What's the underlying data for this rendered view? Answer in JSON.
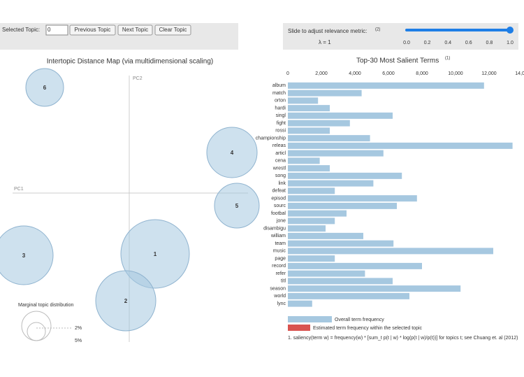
{
  "toolbar": {
    "label": "Selected Topic:",
    "input": "0",
    "buttons": [
      "Previous Topic",
      "Next Topic",
      "Clear Topic"
    ]
  },
  "slider": {
    "label": "Slide to adjust relevance metric:",
    "note": "(2)",
    "lambda": "λ = 1",
    "value": 1,
    "xlim": [
      0,
      1
    ],
    "ticks": [
      {
        "value": 0,
        "label": "0.0"
      },
      {
        "value": 0.2,
        "label": "0.2"
      },
      {
        "value": 0.4,
        "label": "0.4"
      },
      {
        "value": 0.6,
        "label": "0.6"
      },
      {
        "value": 0.8,
        "label": "0.8"
      },
      {
        "value": 1,
        "label": "1.0"
      }
    ]
  },
  "map": {
    "title": "Intertopic Distance Map (via multidimensional scaling)",
    "x_axis": "PC1",
    "y_axis": "PC2",
    "topics": [
      "1",
      "2",
      "3",
      "4",
      "5",
      "6"
    ],
    "marginal": {
      "title": "Marginal topic distribution",
      "labels": [
        "2%",
        "5%"
      ]
    }
  },
  "chart_data": {
    "type": "bar",
    "orientation": "horizontal",
    "title": "Top-30 Most Salient Terms",
    "title_note": "(1)",
    "categories": [
      "album",
      "match",
      "orton",
      "hardi",
      "singl",
      "fight",
      "rossi",
      "championship",
      "releas",
      "articl",
      "cena",
      "wrestl",
      "song",
      "link",
      "defeat",
      "episod",
      "sourc",
      "footbal",
      "jone",
      "disambigu",
      "william",
      "team",
      "music",
      "page",
      "record",
      "refer",
      "titl",
      "season",
      "world",
      "lync"
    ],
    "series": [
      {
        "name": "Overall term frequency",
        "color": "#a6c8e0",
        "values": [
          11700,
          4400,
          1800,
          2500,
          6250,
          3700,
          2500,
          4900,
          13400,
          5700,
          1900,
          2500,
          6800,
          5100,
          2800,
          7700,
          6500,
          3500,
          2800,
          2250,
          4500,
          6300,
          12250,
          2800,
          8000,
          4600,
          6250,
          10300,
          7250,
          1450
        ]
      }
    ],
    "legend_extra": {
      "name": "Estimated term frequency within the selected topic",
      "color": "#d9534f"
    },
    "xlim": [
      0,
      14000
    ],
    "xticks": [
      0,
      {
        "value": 2000,
        "label": "2,000"
      },
      {
        "value": 4000,
        "label": "4,000"
      },
      {
        "value": 6000,
        "label": "6,000"
      },
      {
        "value": 8000,
        "label": "8,000"
      },
      {
        "value": 10000,
        "label": "10,000"
      },
      {
        "value": 12000,
        "label": "12,000"
      },
      {
        "value": 14000,
        "label": "14,000"
      }
    ],
    "footnote": "1. saliency(term w) = frequency(w) * [sum_t p(t | w) * log(p(t | w)/p(t))] for topics t; see Chuang et. al (2012)"
  }
}
